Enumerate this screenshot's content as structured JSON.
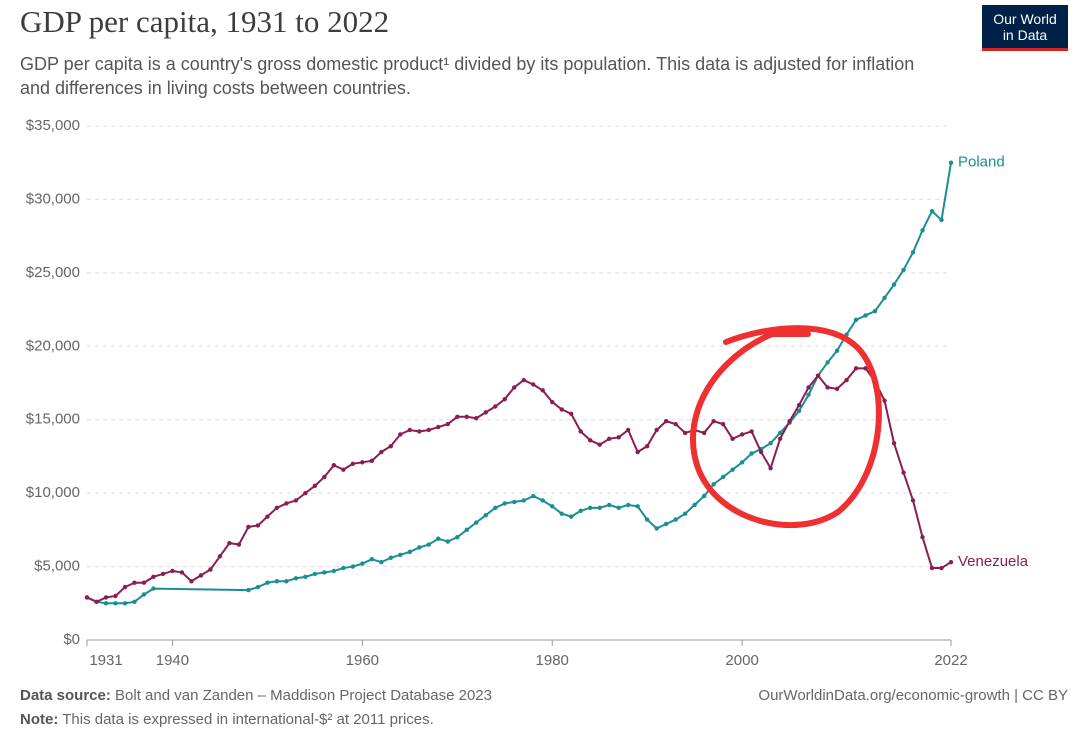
{
  "chart_data": {
    "type": "line",
    "title": "GDP per capita, 1931 to 2022",
    "subtitle": "GDP per capita is a country's gross domestic product¹ divided by its population. This data is adjusted for inflation and differences in living costs between countries.",
    "logo": [
      "Our World",
      "in Data"
    ],
    "source_label": "Data source:",
    "source": "Bolt and van Zanden – Maddison Project Database 2023",
    "url": "OurWorldinData.org/economic-growth | CC BY",
    "note_label": "Note:",
    "note": "This data is expressed in international-$² at 2011 prices.",
    "xlim": [
      1931,
      2022
    ],
    "xticks": [
      1931,
      1940,
      1960,
      1980,
      2000,
      2022
    ],
    "ylim": [
      0,
      35000
    ],
    "yticks": [
      {
        "value": 0,
        "label": "$0"
      },
      {
        "value": 5000,
        "label": "$5,000"
      },
      {
        "value": 10000,
        "label": "$10,000"
      },
      {
        "value": 15000,
        "label": "$15,000"
      },
      {
        "value": 20000,
        "label": "$20,000"
      },
      {
        "value": 25000,
        "label": "$25,000"
      },
      {
        "value": 30000,
        "label": "$30,000"
      },
      {
        "value": 35000,
        "label": "$35,000"
      }
    ],
    "grid": true,
    "series": [
      {
        "name": "Poland",
        "color": "#1a8f93",
        "x": [
          1931,
          1932,
          1933,
          1934,
          1935,
          1936,
          1937,
          1938,
          1948,
          1949,
          1950,
          1951,
          1952,
          1953,
          1954,
          1955,
          1956,
          1957,
          1958,
          1959,
          1960,
          1961,
          1962,
          1963,
          1964,
          1965,
          1966,
          1967,
          1968,
          1969,
          1970,
          1971,
          1972,
          1973,
          1974,
          1975,
          1976,
          1977,
          1978,
          1979,
          1980,
          1981,
          1982,
          1983,
          1984,
          1985,
          1986,
          1987,
          1988,
          1989,
          1990,
          1991,
          1992,
          1993,
          1994,
          1995,
          1996,
          1997,
          1998,
          1999,
          2000,
          2001,
          2002,
          2003,
          2004,
          2005,
          2006,
          2007,
          2008,
          2009,
          2010,
          2011,
          2012,
          2013,
          2014,
          2015,
          2016,
          2017,
          2018,
          2019,
          2020,
          2021,
          2022
        ],
        "values": [
          2900,
          2600,
          2500,
          2500,
          2500,
          2600,
          3100,
          3500,
          3400,
          3600,
          3900,
          4000,
          4000,
          4200,
          4300,
          4500,
          4600,
          4700,
          4900,
          5000,
          5200,
          5500,
          5300,
          5600,
          5800,
          6000,
          6300,
          6500,
          6900,
          6700,
          7000,
          7500,
          8000,
          8500,
          9000,
          9300,
          9400,
          9500,
          9800,
          9500,
          9100,
          8600,
          8400,
          8800,
          9000,
          9000,
          9200,
          9000,
          9200,
          9100,
          8200,
          7600,
          7900,
          8200,
          8600,
          9200,
          9800,
          10600,
          11100,
          11600,
          12100,
          12700,
          13000,
          13400,
          14100,
          14800,
          15600,
          16700,
          18000,
          18900,
          19700,
          20800,
          21800,
          22100,
          22400,
          23300,
          24200,
          25200,
          26400,
          27900,
          29200,
          28600,
          32500
        ]
      },
      {
        "name": "Venezuela",
        "color": "#8a1e52",
        "x": [
          1931,
          1932,
          1933,
          1934,
          1935,
          1936,
          1937,
          1938,
          1939,
          1940,
          1941,
          1942,
          1943,
          1944,
          1945,
          1946,
          1947,
          1948,
          1949,
          1950,
          1951,
          1952,
          1953,
          1954,
          1955,
          1956,
          1957,
          1958,
          1959,
          1960,
          1961,
          1962,
          1963,
          1964,
          1965,
          1966,
          1967,
          1968,
          1969,
          1970,
          1971,
          1972,
          1973,
          1974,
          1975,
          1976,
          1977,
          1978,
          1979,
          1980,
          1981,
          1982,
          1983,
          1984,
          1985,
          1986,
          1987,
          1988,
          1989,
          1990,
          1991,
          1992,
          1993,
          1994,
          1995,
          1996,
          1997,
          1998,
          1999,
          2000,
          2001,
          2002,
          2003,
          2004,
          2005,
          2006,
          2007,
          2008,
          2009,
          2010,
          2011,
          2012,
          2013,
          2014,
          2015,
          2016,
          2017,
          2018,
          2019,
          2020,
          2021,
          2022
        ],
        "values": [
          2900,
          2600,
          2900,
          3000,
          3600,
          3900,
          3900,
          4300,
          4500,
          4700,
          4600,
          4000,
          4400,
          4800,
          5700,
          6600,
          6500,
          7700,
          7800,
          8400,
          9000,
          9300,
          9500,
          10000,
          10500,
          11100,
          11900,
          11600,
          12000,
          12100,
          12200,
          12800,
          13200,
          14000,
          14300,
          14200,
          14300,
          14500,
          14700,
          15200,
          15200,
          15100,
          15500,
          15900,
          16400,
          17200,
          17700,
          17400,
          17000,
          16200,
          15700,
          15400,
          14200,
          13600,
          13300,
          13700,
          13800,
          14300,
          12800,
          13200,
          14300,
          14900,
          14700,
          14100,
          14300,
          14100,
          14900,
          14700,
          13700,
          14000,
          14200,
          12800,
          11700,
          13700,
          14900,
          16000,
          17200,
          18000,
          17200,
          17100,
          17700,
          18500,
          18500,
          17600,
          16300,
          13400,
          11400,
          9500,
          7000,
          4900,
          4900,
          5300
        ]
      }
    ]
  }
}
